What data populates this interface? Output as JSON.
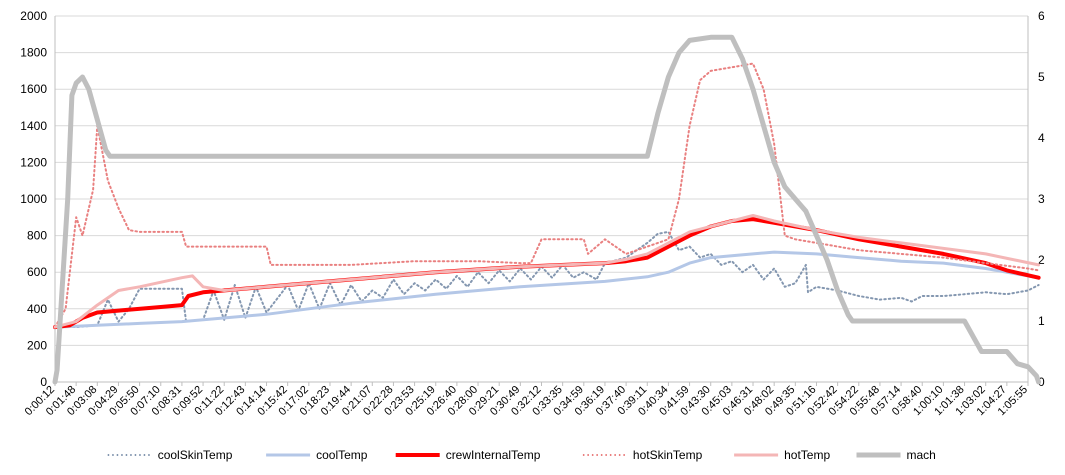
{
  "chart_data": {
    "type": "line",
    "grid": "horizontal",
    "legend_position": "bottom",
    "ylim_left": [
      0,
      2000
    ],
    "yticks_left": [
      "0",
      "200",
      "400",
      "600",
      "800",
      "1000",
      "1200",
      "1400",
      "1600",
      "1800",
      "2000"
    ],
    "ylim_right": [
      0,
      6
    ],
    "yticks_right": [
      "0",
      "1",
      "2",
      "3",
      "4",
      "5",
      "6"
    ],
    "x_tick_labels": [
      "0:00:12",
      "0:01:48",
      "0:03:08",
      "0:04:29",
      "0:05:50",
      "0:07:10",
      "0:08:31",
      "0:09:52",
      "0:11:22",
      "0:12:43",
      "0:14:14",
      "0:15:42",
      "0:17:02",
      "0:18:23",
      "0:19:44",
      "0:21:07",
      "0:22:28",
      "0:23:53",
      "0:25:19",
      "0:26:40",
      "0:28:00",
      "0:29:21",
      "0:30:49",
      "0:32:12",
      "0:33:35",
      "0:34:59",
      "0:36:19",
      "0:37:40",
      "0:39:11",
      "0:40:34",
      "0:41:59",
      "0:43:30",
      "0:45:03",
      "0:46:31",
      "0:48:02",
      "0:49:35",
      "0:51:16",
      "0:52:42",
      "0:54:22",
      "0:55:48",
      "0:57:14",
      "0:58:40",
      "1:00:10",
      "1:01:38",
      "1:03:02",
      "1:04:27",
      "1:05:55"
    ],
    "series": [
      {
        "name": "coolSkinTemp",
        "color": "#8497b0",
        "style": "dotted",
        "axis": "left",
        "points": [
          [
            0,
            305
          ],
          [
            1,
            300
          ],
          [
            2,
            310
          ],
          [
            2.5,
            450
          ],
          [
            3,
            330
          ],
          [
            3.5,
            400
          ],
          [
            4,
            510
          ],
          [
            6,
            510
          ],
          [
            6.2,
            330
          ],
          [
            7,
            340
          ],
          [
            7.5,
            500
          ],
          [
            8,
            340
          ],
          [
            8.5,
            530
          ],
          [
            9,
            350
          ],
          [
            9.5,
            520
          ],
          [
            10,
            380
          ],
          [
            11,
            530
          ],
          [
            11.5,
            390
          ],
          [
            12,
            540
          ],
          [
            12.5,
            400
          ],
          [
            13,
            540
          ],
          [
            13.5,
            420
          ],
          [
            14,
            530
          ],
          [
            14.5,
            440
          ],
          [
            15,
            500
          ],
          [
            15.5,
            460
          ],
          [
            16,
            560
          ],
          [
            16.5,
            480
          ],
          [
            17,
            540
          ],
          [
            17.5,
            500
          ],
          [
            18,
            560
          ],
          [
            18.5,
            510
          ],
          [
            19,
            580
          ],
          [
            19.5,
            520
          ],
          [
            20,
            600
          ],
          [
            20.5,
            540
          ],
          [
            21,
            610
          ],
          [
            21.5,
            550
          ],
          [
            22,
            620
          ],
          [
            22.5,
            560
          ],
          [
            23,
            630
          ],
          [
            23.5,
            570
          ],
          [
            24,
            640
          ],
          [
            24.5,
            570
          ],
          [
            25,
            600
          ],
          [
            25.6,
            560
          ],
          [
            26,
            650
          ],
          [
            27,
            680
          ],
          [
            28,
            760
          ],
          [
            28.5,
            810
          ],
          [
            29,
            820
          ],
          [
            29.5,
            720
          ],
          [
            30,
            740
          ],
          [
            30.5,
            680
          ],
          [
            31,
            700
          ],
          [
            31.5,
            640
          ],
          [
            32,
            660
          ],
          [
            32.5,
            600
          ],
          [
            33,
            640
          ],
          [
            33.5,
            560
          ],
          [
            34,
            620
          ],
          [
            34.5,
            520
          ],
          [
            35,
            540
          ],
          [
            35.5,
            640
          ],
          [
            35.6,
            490
          ],
          [
            36,
            520
          ],
          [
            37,
            500
          ],
          [
            38,
            470
          ],
          [
            39,
            450
          ],
          [
            40,
            460
          ],
          [
            40.5,
            440
          ],
          [
            41,
            470
          ],
          [
            42,
            470
          ],
          [
            43,
            480
          ],
          [
            44,
            490
          ],
          [
            45,
            480
          ],
          [
            46,
            500
          ],
          [
            46.5,
            530
          ]
        ]
      },
      {
        "name": "coolTemp",
        "color": "#b4c7e7",
        "style": "solid",
        "axis": "left",
        "points": [
          [
            0,
            300
          ],
          [
            1,
            305
          ],
          [
            2,
            310
          ],
          [
            4,
            320
          ],
          [
            6,
            330
          ],
          [
            10,
            370
          ],
          [
            14,
            430
          ],
          [
            18,
            480
          ],
          [
            22,
            520
          ],
          [
            26,
            550
          ],
          [
            28,
            575
          ],
          [
            29,
            600
          ],
          [
            30,
            650
          ],
          [
            31,
            680
          ],
          [
            33,
            700
          ],
          [
            34,
            710
          ],
          [
            36,
            700
          ],
          [
            38,
            680
          ],
          [
            40,
            660
          ],
          [
            42,
            650
          ],
          [
            44,
            620
          ],
          [
            46,
            580
          ],
          [
            46.5,
            570
          ]
        ]
      },
      {
        "name": "crewInternalTemp",
        "color": "#ff0000",
        "style": "solid",
        "axis": "left",
        "points": [
          [
            0,
            300
          ],
          [
            0.7,
            310
          ],
          [
            1.3,
            350
          ],
          [
            2,
            380
          ],
          [
            3,
            390
          ],
          [
            5,
            410
          ],
          [
            6,
            420
          ],
          [
            6.3,
            470
          ],
          [
            7,
            490
          ],
          [
            10,
            520
          ],
          [
            14,
            560
          ],
          [
            18,
            600
          ],
          [
            22,
            630
          ],
          [
            26,
            650
          ],
          [
            27,
            660
          ],
          [
            28,
            680
          ],
          [
            29,
            740
          ],
          [
            30,
            800
          ],
          [
            31,
            850
          ],
          [
            32,
            880
          ],
          [
            33,
            890
          ],
          [
            34,
            870
          ],
          [
            36,
            830
          ],
          [
            38,
            780
          ],
          [
            40,
            740
          ],
          [
            42,
            700
          ],
          [
            44,
            650
          ],
          [
            45,
            610
          ],
          [
            46.5,
            570
          ]
        ]
      },
      {
        "name": "hotSkinTemp",
        "color": "#e98080",
        "style": "dotted",
        "axis": "left",
        "points": [
          [
            0,
            300
          ],
          [
            0.5,
            400
          ],
          [
            1,
            900
          ],
          [
            1.3,
            800
          ],
          [
            1.8,
            1050
          ],
          [
            2,
            1400
          ],
          [
            2.5,
            1100
          ],
          [
            3,
            950
          ],
          [
            3.5,
            830
          ],
          [
            4,
            820
          ],
          [
            6,
            820
          ],
          [
            6.2,
            740
          ],
          [
            10,
            740
          ],
          [
            10.2,
            640
          ],
          [
            14,
            640
          ],
          [
            17,
            660
          ],
          [
            20,
            660
          ],
          [
            22,
            650
          ],
          [
            22.5,
            650
          ],
          [
            23,
            780
          ],
          [
            25,
            780
          ],
          [
            25.2,
            700
          ],
          [
            26,
            780
          ],
          [
            27,
            700
          ],
          [
            29,
            780
          ],
          [
            29.5,
            1000
          ],
          [
            30,
            1400
          ],
          [
            30.5,
            1650
          ],
          [
            31,
            1700
          ],
          [
            33,
            1740
          ],
          [
            33.5,
            1600
          ],
          [
            34,
            1300
          ],
          [
            34.5,
            800
          ],
          [
            35,
            780
          ],
          [
            36,
            760
          ],
          [
            38,
            720
          ],
          [
            40,
            700
          ],
          [
            42,
            680
          ],
          [
            44,
            650
          ],
          [
            46,
            620
          ],
          [
            46.5,
            610
          ]
        ]
      },
      {
        "name": "hotTemp",
        "color": "#f4b6b6",
        "style": "solid",
        "axis": "left",
        "points": [
          [
            0,
            300
          ],
          [
            1,
            330
          ],
          [
            2,
            420
          ],
          [
            3,
            500
          ],
          [
            4,
            520
          ],
          [
            6,
            570
          ],
          [
            6.5,
            580
          ],
          [
            7,
            520
          ],
          [
            8,
            500
          ],
          [
            10,
            520
          ],
          [
            14,
            560
          ],
          [
            18,
            600
          ],
          [
            22,
            630
          ],
          [
            26,
            650
          ],
          [
            27,
            670
          ],
          [
            28,
            700
          ],
          [
            30,
            820
          ],
          [
            32,
            880
          ],
          [
            33,
            910
          ],
          [
            34,
            880
          ],
          [
            36,
            830
          ],
          [
            38,
            790
          ],
          [
            40,
            760
          ],
          [
            44,
            700
          ],
          [
            46.5,
            640
          ]
        ]
      },
      {
        "name": "mach",
        "color": "#bfbfbf",
        "style": "solid",
        "axis": "right",
        "points": [
          [
            0,
            0
          ],
          [
            0.1,
            0.2
          ],
          [
            0.6,
            3
          ],
          [
            0.8,
            4.7
          ],
          [
            1,
            4.9
          ],
          [
            1.3,
            5
          ],
          [
            1.6,
            4.8
          ],
          [
            2,
            4.3
          ],
          [
            2.4,
            3.8
          ],
          [
            2.6,
            3.7
          ],
          [
            28,
            3.7
          ],
          [
            28.5,
            4.4
          ],
          [
            29,
            5
          ],
          [
            29.5,
            5.4
          ],
          [
            30,
            5.6
          ],
          [
            31,
            5.65
          ],
          [
            32,
            5.65
          ],
          [
            32.5,
            5.3
          ],
          [
            33,
            4.8
          ],
          [
            33.5,
            4.2
          ],
          [
            34,
            3.6
          ],
          [
            34.5,
            3.2
          ],
          [
            35,
            3
          ],
          [
            35.5,
            2.8
          ],
          [
            36,
            2.4
          ],
          [
            36.5,
            2.0
          ],
          [
            37,
            1.5
          ],
          [
            37.5,
            1.1
          ],
          [
            37.7,
            1
          ],
          [
            43,
            1
          ],
          [
            43.4,
            0.75
          ],
          [
            43.8,
            0.5
          ],
          [
            45,
            0.5
          ],
          [
            45.5,
            0.3
          ],
          [
            46,
            0.25
          ],
          [
            46.4,
            0.1
          ],
          [
            46.5,
            0
          ]
        ]
      }
    ]
  }
}
